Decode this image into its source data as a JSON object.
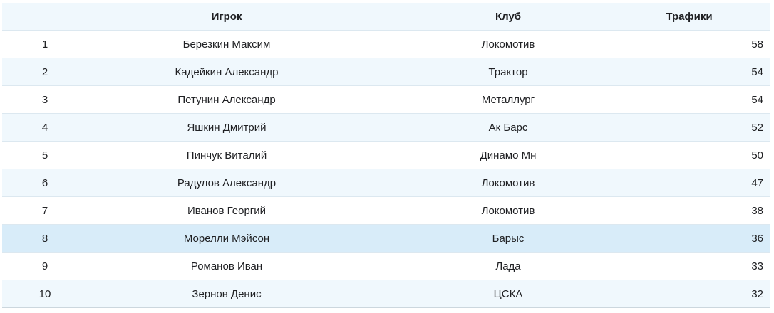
{
  "table": {
    "columns": [
      {
        "key": "rank",
        "label": ""
      },
      {
        "key": "player",
        "label": "Игрок"
      },
      {
        "key": "club",
        "label": "Клуб"
      },
      {
        "key": "value",
        "label": "Трафики"
      }
    ],
    "rows": [
      {
        "rank": "1",
        "player": "Березкин Максим",
        "club": "Локомотив",
        "value": "58",
        "highlight": false
      },
      {
        "rank": "2",
        "player": "Кадейкин Александр",
        "club": "Трактор",
        "value": "54",
        "highlight": false
      },
      {
        "rank": "3",
        "player": "Петунин Александр",
        "club": "Металлург",
        "value": "54",
        "highlight": false
      },
      {
        "rank": "4",
        "player": "Яшкин Дмитрий",
        "club": "Ак Барс",
        "value": "52",
        "highlight": false
      },
      {
        "rank": "5",
        "player": "Пинчук Виталий",
        "club": "Динамо Мн",
        "value": "50",
        "highlight": false
      },
      {
        "rank": "6",
        "player": "Радулов Александр",
        "club": "Локомотив",
        "value": "47",
        "highlight": false
      },
      {
        "rank": "7",
        "player": "Иванов Георгий",
        "club": "Локомотив",
        "value": "38",
        "highlight": false
      },
      {
        "rank": "8",
        "player": "Морелли Мэйсон",
        "club": "Барыс",
        "value": "36",
        "highlight": true
      },
      {
        "rank": "9",
        "player": "Романов Иван",
        "club": "Лада",
        "value": "33",
        "highlight": false
      },
      {
        "rank": "10",
        "player": "Зернов Денис",
        "club": "ЦСКА",
        "value": "32",
        "highlight": false
      }
    ]
  },
  "colors": {
    "header_bg": "#f0f8fd",
    "stripe_bg": "#f0f8fd",
    "highlight_bg": "#d8ecf9",
    "row_border": "#dce8f0",
    "bottom_border": "#ccd7de",
    "text": "#202124"
  }
}
